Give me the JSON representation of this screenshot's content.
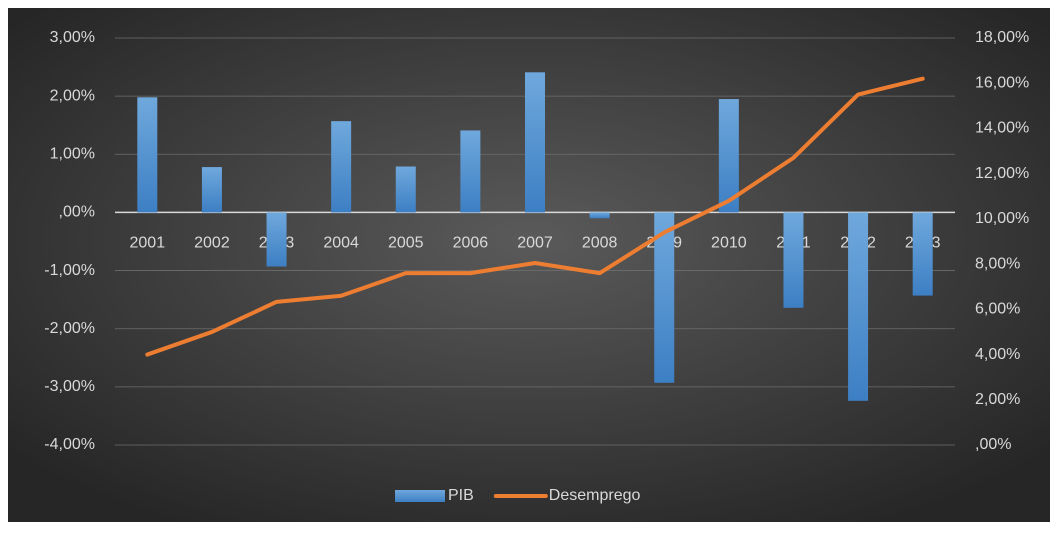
{
  "chart_data": {
    "type": "bar_line",
    "categories": [
      "2001",
      "2002",
      "2003",
      "2004",
      "2005",
      "2006",
      "2007",
      "2008",
      "2009",
      "2010",
      "2011",
      "2012",
      "2013"
    ],
    "series": [
      {
        "name": "PIB",
        "type": "bar",
        "color": "#5b9bd5",
        "values": [
          1.98,
          0.78,
          -0.93,
          1.57,
          0.79,
          1.41,
          2.41,
          -0.1,
          -2.93,
          1.95,
          -1.64,
          -3.24,
          -1.43
        ]
      },
      {
        "name": "Desemprego",
        "type": "line",
        "axis": "y2",
        "color": "#ed7d31",
        "values": [
          4.0,
          5.0,
          6.33,
          6.6,
          7.6,
          7.6,
          8.05,
          7.6,
          9.4,
          10.8,
          12.7,
          15.5,
          16.2
        ]
      }
    ],
    "ylim": [
      -4,
      3
    ],
    "yticks": [
      {
        "value": -4,
        "label": "-4,00%"
      },
      {
        "value": -3,
        "label": "-3,00%"
      },
      {
        "value": -2,
        "label": "-2,00%"
      },
      {
        "value": -1,
        "label": "-1,00%"
      },
      {
        "value": 0,
        "label": ",00%"
      },
      {
        "value": 1,
        "label": "1,00%"
      },
      {
        "value": 2,
        "label": "2,00%"
      },
      {
        "value": 3,
        "label": "3,00%"
      }
    ],
    "y2lim": [
      0,
      18
    ],
    "y2ticks": [
      {
        "value": 0,
        "label": ",00%"
      },
      {
        "value": 2,
        "label": "2,00%"
      },
      {
        "value": 4,
        "label": "4,00%"
      },
      {
        "value": 6,
        "label": "6,00%"
      },
      {
        "value": 8,
        "label": "8,00%"
      },
      {
        "value": 10,
        "label": "10,00%"
      },
      {
        "value": 12,
        "label": "12,00%"
      },
      {
        "value": 14,
        "label": "14,00%"
      },
      {
        "value": 16,
        "label": "16,00%"
      },
      {
        "value": 18,
        "label": "18,00%"
      }
    ],
    "grid": true,
    "legend": "bottom"
  }
}
